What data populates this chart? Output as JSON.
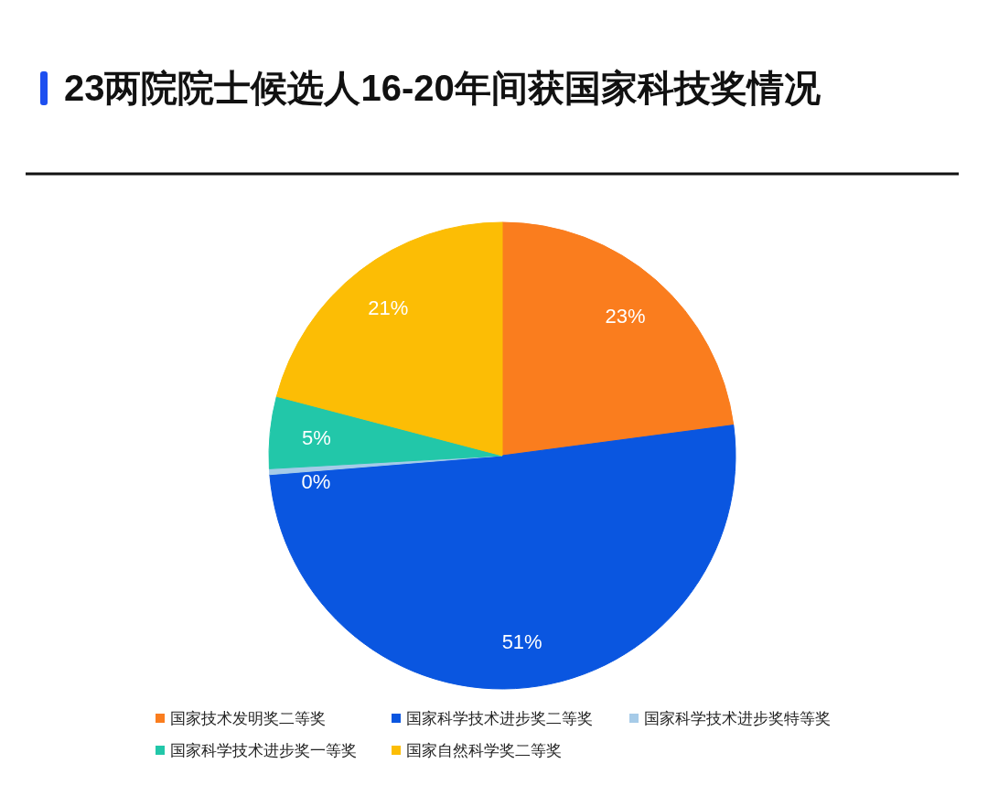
{
  "chart_data": {
    "type": "pie",
    "title": "23两院院士候选人16-20年间获国家科技奖情况",
    "categories": [
      "国家技术发明奖二等奖",
      "国家科学技术进步奖二等奖",
      "国家科学技术进步奖特等奖",
      "国家科学技术进步奖一等奖",
      "国家自然科学奖二等奖"
    ],
    "values": [
      23,
      51,
      0.4,
      5,
      21
    ],
    "value_labels": [
      "23%",
      "51%",
      "0%",
      "5%",
      "21%"
    ],
    "colors": [
      "#fa7d1e",
      "#0a56e0",
      "#a6cbe8",
      "#22c7a9",
      "#fcbd05"
    ],
    "legend": "bottom"
  }
}
